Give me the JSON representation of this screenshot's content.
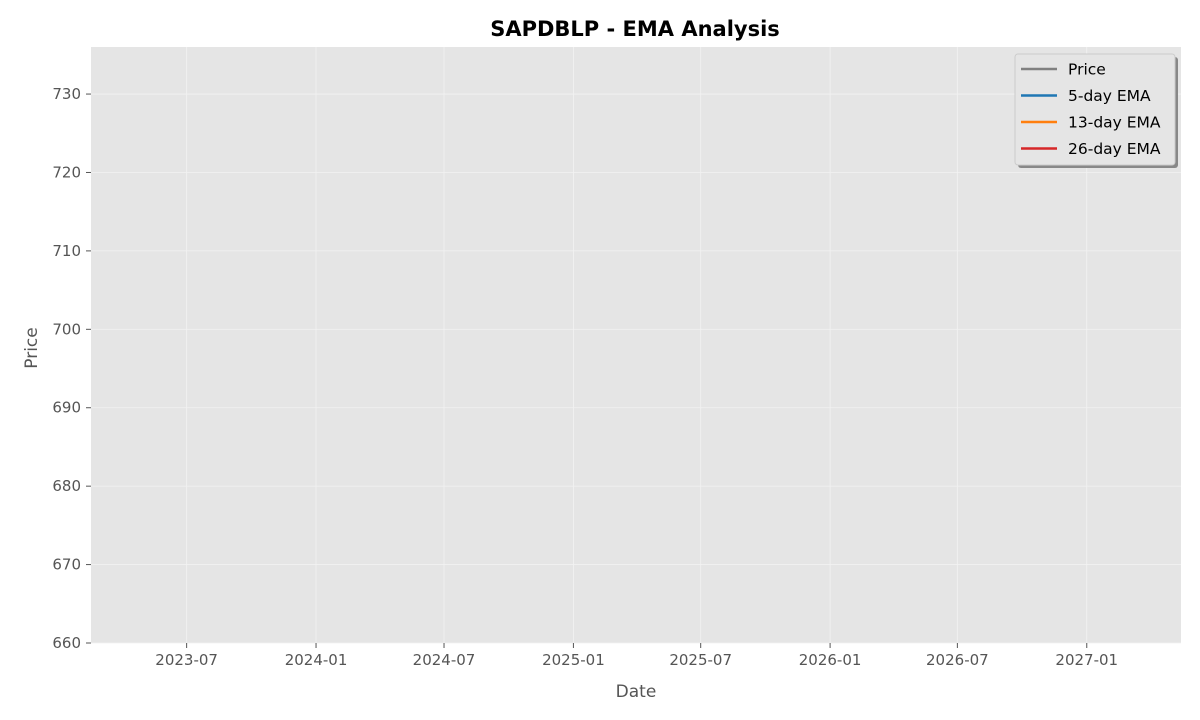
{
  "chart_data": {
    "type": "line",
    "title": "SAPDBLP - EMA Analysis",
    "xlabel": "Date",
    "ylabel": "Price",
    "x_axis_kind": "date",
    "xlim": [
      "2023-02-15",
      "2027-05-15"
    ],
    "ylim": [
      660,
      736
    ],
    "x_ticks": [
      "2023-07",
      "2024-01",
      "2024-07",
      "2025-01",
      "2025-07",
      "2026-01",
      "2026-07",
      "2027-01"
    ],
    "y_ticks": [
      660,
      670,
      680,
      690,
      700,
      710,
      720,
      730
    ],
    "grid": true,
    "legend_position": "upper right",
    "series": [
      {
        "name": "Price",
        "color": "#808080",
        "x": [],
        "y": []
      },
      {
        "name": "5-day EMA",
        "color": "#1f77b4",
        "x": [],
        "y": []
      },
      {
        "name": "13-day EMA",
        "color": "#ff7f0e",
        "x": [],
        "y": []
      },
      {
        "name": "26-day EMA",
        "color": "#d62728",
        "x": [],
        "y": []
      }
    ],
    "colors": {
      "plot_background": "#e5e5e5",
      "grid": "#f2f2f2"
    }
  }
}
